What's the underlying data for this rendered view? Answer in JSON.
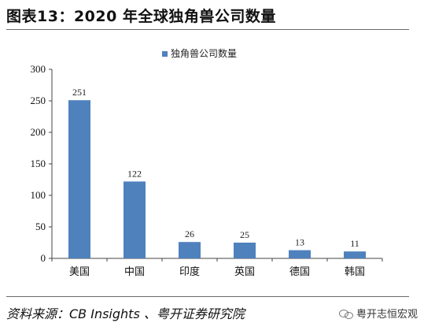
{
  "figure_title": "图表13：2020 年全球独角兽公司数量",
  "source_text": "资料来源：CB Insights 、粤开证券研究院",
  "watermark_text": "粤开志恒宏观",
  "watermark_icon": "wechat-icon",
  "bar_color": "#4f81bd",
  "chart_data": {
    "type": "bar",
    "title": "",
    "categories": [
      "美国",
      "中国",
      "印度",
      "英国",
      "德国",
      "韩国"
    ],
    "series": [
      {
        "name": "独角兽公司数量",
        "values": [
          251,
          122,
          26,
          25,
          13,
          11
        ]
      }
    ],
    "data_labels": [
      "251",
      "122",
      "26",
      "25",
      "13",
      "11"
    ],
    "xlabel": "",
    "ylabel": "",
    "ylim": [
      0,
      300
    ],
    "yticks": [
      0,
      50,
      100,
      150,
      200,
      250,
      300
    ],
    "ytick_labels": [
      "0",
      "50",
      "100",
      "150",
      "200",
      "250",
      "300"
    ],
    "grid": false,
    "legend_position": "top-center"
  }
}
